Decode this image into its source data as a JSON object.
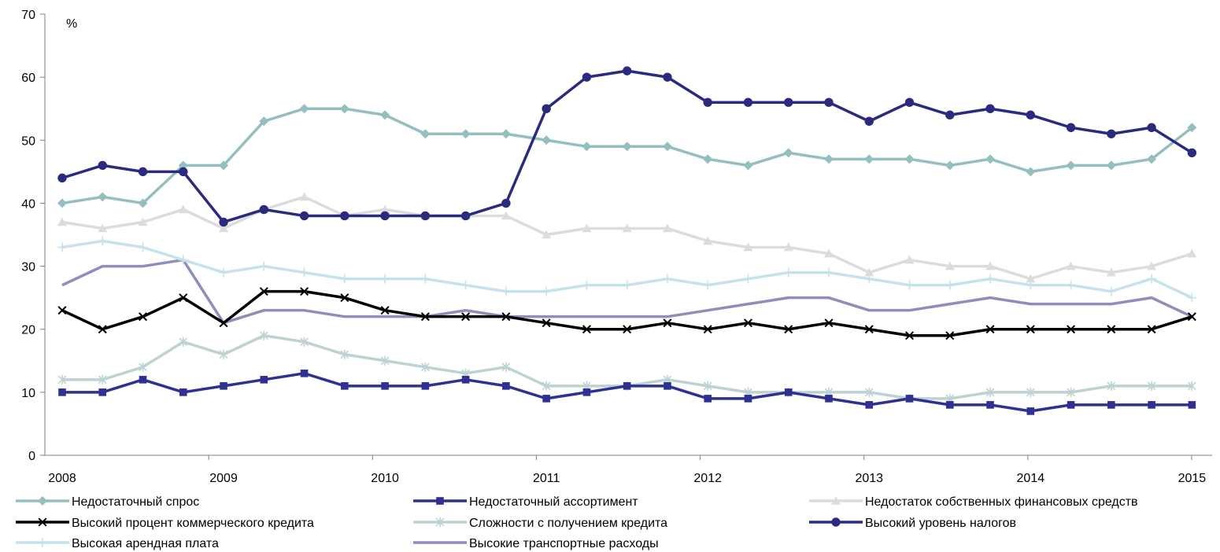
{
  "chart_data": {
    "type": "line",
    "ylabel": "%",
    "ylim": [
      0,
      70
    ],
    "yticks": [
      0,
      10,
      20,
      30,
      40,
      50,
      60,
      70
    ],
    "xlim": [
      2008,
      2015.125
    ],
    "xticks": [
      "2008",
      "2009",
      "2010",
      "2011",
      "2012",
      "2013",
      "2014",
      "2015"
    ],
    "grid": false,
    "legend_position": "bottom",
    "x": [
      2008.0,
      2008.25,
      2008.5,
      2008.75,
      2009.0,
      2009.25,
      2009.5,
      2009.75,
      2010.0,
      2010.25,
      2010.5,
      2010.75,
      2011.0,
      2011.25,
      2011.5,
      2011.75,
      2012.0,
      2012.25,
      2012.5,
      2012.75,
      2013.0,
      2013.25,
      2013.5,
      2013.75,
      2014.0,
      2014.25,
      2014.5,
      2014.75,
      2015.0
    ],
    "series": [
      {
        "name": "Недостаточный спрос",
        "color": "#93BFC1",
        "marker": "diamond",
        "values": [
          40,
          41,
          40,
          46,
          46,
          53,
          55,
          55,
          54,
          51,
          51,
          51,
          50,
          49,
          49,
          49,
          47,
          46,
          48,
          47,
          47,
          47,
          46,
          47,
          45,
          46,
          46,
          47,
          52
        ]
      },
      {
        "name": "Недостаточный ассортимент",
        "color": "#2E3191",
        "marker": "square",
        "values": [
          10,
          10,
          12,
          10,
          11,
          12,
          13,
          11,
          11,
          11,
          12,
          11,
          9,
          10,
          11,
          11,
          9,
          9,
          10,
          9,
          8,
          9,
          8,
          8,
          7,
          8,
          8,
          8,
          8
        ]
      },
      {
        "name": "Недостаток собственных финансовых средств",
        "color": "#DCDCDC",
        "marker": "triangle",
        "values": [
          37,
          36,
          37,
          39,
          36,
          39,
          41,
          38,
          39,
          38,
          38,
          38,
          35,
          36,
          36,
          36,
          34,
          33,
          33,
          32,
          29,
          31,
          30,
          30,
          28,
          30,
          29,
          30,
          32
        ]
      },
      {
        "name": "Высокий процент коммерческого кредита",
        "color": "#000000",
        "marker": "x",
        "values": [
          23,
          20,
          22,
          25,
          21,
          26,
          26,
          25,
          23,
          22,
          22,
          22,
          21,
          20,
          20,
          21,
          20,
          21,
          20,
          21,
          20,
          19,
          19,
          20,
          20,
          20,
          20,
          20,
          22
        ]
      },
      {
        "name": "Сложности с получением кредита",
        "color": "#BCD2D3",
        "marker": "asterisk",
        "values": [
          12,
          12,
          14,
          18,
          16,
          19,
          18,
          16,
          15,
          14,
          13,
          14,
          11,
          11,
          11,
          12,
          11,
          10,
          10,
          10,
          10,
          9,
          9,
          10,
          10,
          10,
          11,
          11,
          11
        ]
      },
      {
        "name": "Высокий  уровень налогов",
        "color": "#2A2B7E",
        "marker": "circle",
        "values": [
          44,
          46,
          45,
          45,
          37,
          39,
          38,
          38,
          38,
          38,
          38,
          40,
          55,
          60,
          61,
          60,
          56,
          56,
          56,
          56,
          53,
          56,
          54,
          55,
          54,
          52,
          51,
          52,
          48
        ]
      },
      {
        "name": "Высокая арендная плата",
        "color": "#C6E2EB",
        "marker": "plus",
        "values": [
          33,
          34,
          33,
          31,
          29,
          30,
          29,
          28,
          28,
          28,
          27,
          26,
          26,
          27,
          27,
          28,
          27,
          28,
          29,
          29,
          28,
          27,
          27,
          28,
          27,
          27,
          26,
          28,
          25
        ]
      },
      {
        "name": "Высокие транспортные расходы",
        "color": "#8E8EBE",
        "marker": "none",
        "values": [
          27,
          30,
          30,
          31,
          21,
          23,
          23,
          22,
          22,
          22,
          23,
          22,
          22,
          22,
          22,
          22,
          23,
          24,
          25,
          25,
          23,
          23,
          24,
          25,
          24,
          24,
          24,
          25,
          22
        ]
      }
    ]
  }
}
